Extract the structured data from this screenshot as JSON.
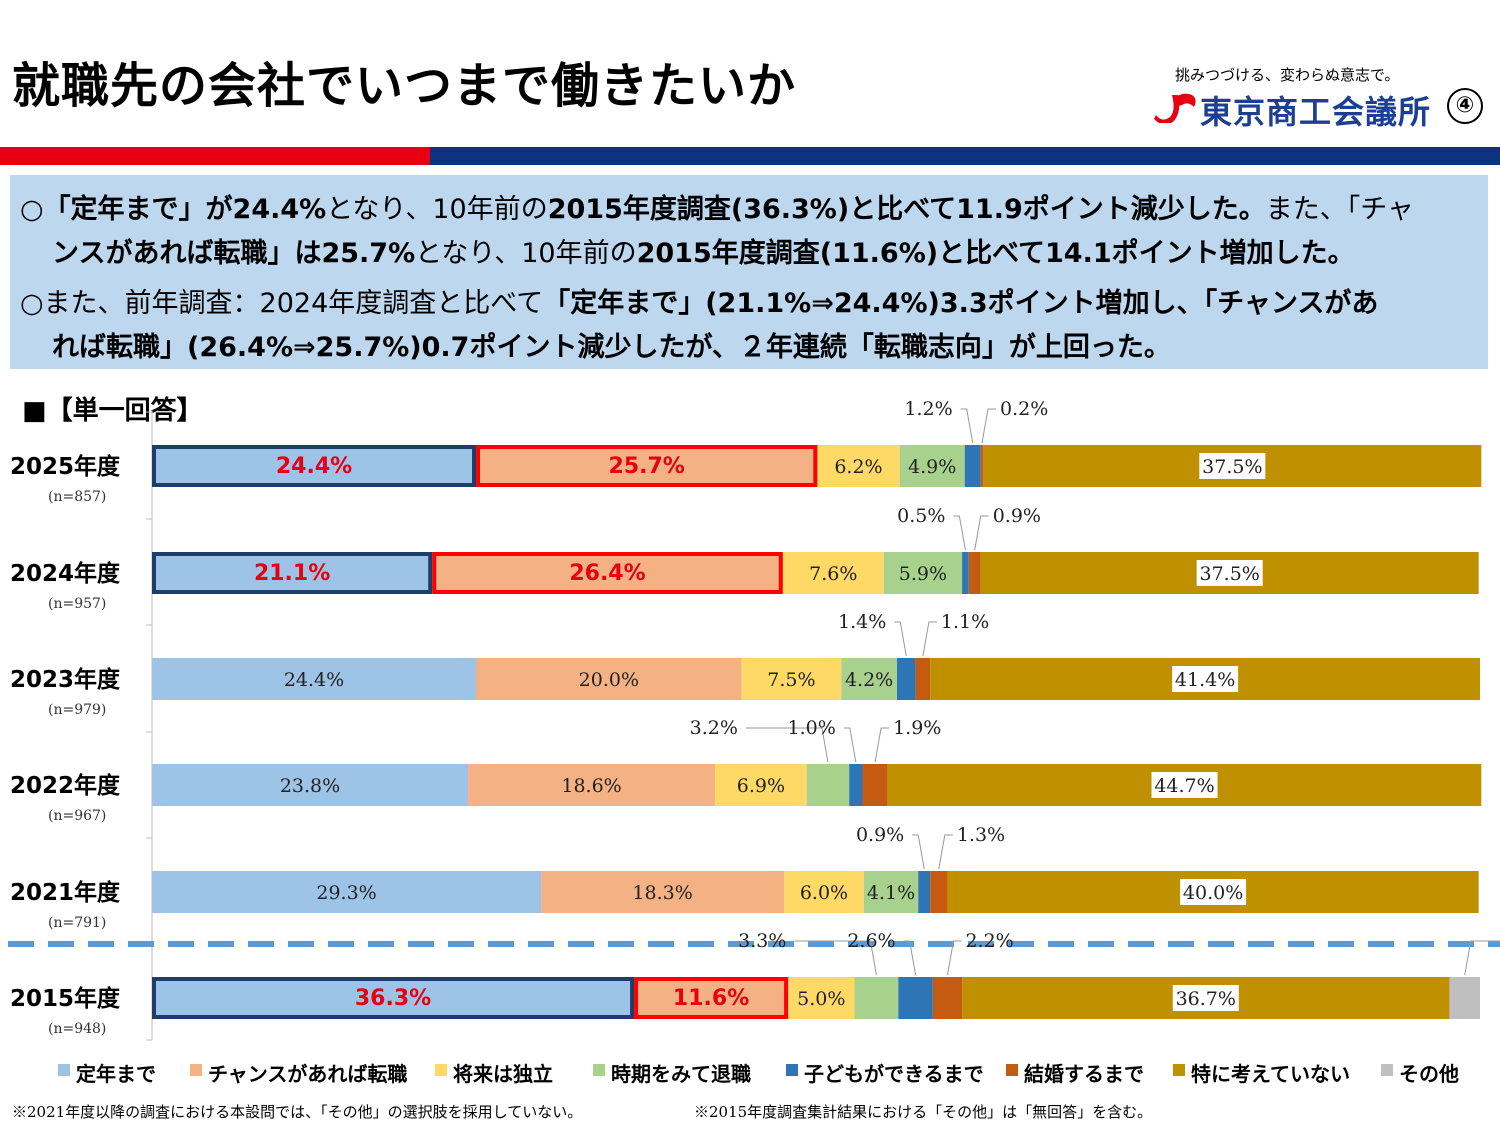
{
  "header": {
    "title": "就職先の会社でいつまで働きたいか",
    "slogan": "挑みつづける、変わらぬ意志で。",
    "org_name": "東京商工会議所",
    "page_number": "④"
  },
  "summary": {
    "line1": [
      "○",
      "「定年まで」が24.4%",
      "となり、10年前の",
      "2015年度調査(36.3%)と比べて11.9ポイント減少した。",
      "また、「チャ"
    ],
    "line2": [
      "ンスがあれば転職」は25.7%",
      "となり、10年前の",
      "2015年度調査(11.6%)と比べて14.1ポイント増加した。"
    ],
    "line3": [
      "○また、前年調査：2024年度調査と比べて",
      "「定年まで」(21.1%⇒24.4%)3.3ポイント増加し、「チャンスがあ"
    ],
    "line4": [
      "れば転職」(26.4%⇒25.7%)0.7ポイント減少したが、２年連続「転職志向」が上回った。"
    ]
  },
  "section_label": "■【単一回答】",
  "footnotes": [
    "※2021年度以降の調査における本設問では、「その他」の選択肢を採用していない。",
    "※2015年度調査集計結果における「その他」は「無回答」を含む。"
  ],
  "colors": {
    "red_stripe": "#e60012",
    "blue_stripe": "#0d3380",
    "summary_bg": "#bdd7ee",
    "highlight_blue_border": "#1f3d6b",
    "highlight_red_border": "#ff0000",
    "highlight_text": "#e60012"
  },
  "chart_data": {
    "type": "bar",
    "orientation": "horizontal",
    "stacked": true,
    "unit": "%",
    "legend_position": "bottom",
    "categories": [
      {
        "year": "2025年度",
        "n": "(n=857)"
      },
      {
        "year": "2024年度",
        "n": "(n=957)"
      },
      {
        "year": "2023年度",
        "n": "(n=979)"
      },
      {
        "year": "2022年度",
        "n": "(n=967)"
      },
      {
        "year": "2021年度",
        "n": "(n=791)"
      },
      {
        "year": "2015年度",
        "n": "(n=948)"
      }
    ],
    "series": [
      {
        "name": "定年まで",
        "color": "#9dc3e6",
        "values": [
          24.4,
          21.1,
          24.4,
          23.8,
          29.3,
          36.3
        ]
      },
      {
        "name": "チャンスがあれば転職",
        "color": "#f4b183",
        "values": [
          25.7,
          26.4,
          20.0,
          18.6,
          18.3,
          11.6
        ]
      },
      {
        "name": "将来は独立",
        "color": "#ffd966",
        "values": [
          6.2,
          7.6,
          7.5,
          6.9,
          6.0,
          5.0
        ]
      },
      {
        "name": "時期をみて退職",
        "color": "#a9d18e",
        "values": [
          4.9,
          5.9,
          4.2,
          3.2,
          4.1,
          3.3
        ]
      },
      {
        "name": "子どもができるまで",
        "color": "#2e75b6",
        "values": [
          1.2,
          0.5,
          1.4,
          1.0,
          0.9,
          2.6
        ]
      },
      {
        "name": "結婚するまで",
        "color": "#c55a11",
        "values": [
          0.2,
          0.9,
          1.1,
          1.9,
          1.3,
          2.2
        ]
      },
      {
        "name": "特に考えていない",
        "color": "#bf9000",
        "values": [
          37.5,
          37.5,
          41.4,
          44.7,
          40.0,
          36.7
        ]
      },
      {
        "name": "その他",
        "color": "#bfbfbf",
        "values": [
          0,
          0,
          0,
          0,
          0,
          2.3
        ]
      }
    ],
    "highlighted_rows": [
      "2025年度",
      "2024年度",
      "2015年度"
    ],
    "highlighted_series": [
      "定年まで",
      "チャンスがあれば転職"
    ]
  }
}
